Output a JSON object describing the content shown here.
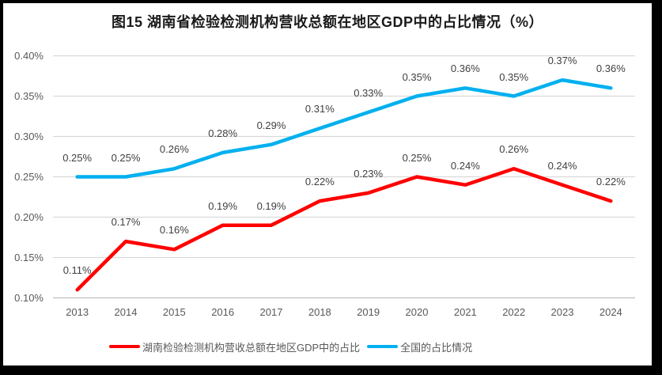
{
  "chart_data": {
    "type": "line",
    "title": "图15 湖南省检验检测机构营收总额在地区GDP中的占比情况（%）",
    "xlabel": "",
    "ylabel": "",
    "categories": [
      "2013",
      "2014",
      "2015",
      "2016",
      "2017",
      "2018",
      "2019",
      "2020",
      "2021",
      "2022",
      "2023",
      "2024"
    ],
    "ylim": [
      0.1,
      0.4
    ],
    "yticks": [
      {
        "v": 0.1,
        "label": "0.10%"
      },
      {
        "v": 0.15,
        "label": "0.15%"
      },
      {
        "v": 0.2,
        "label": "0.20%"
      },
      {
        "v": 0.25,
        "label": "0.25%"
      },
      {
        "v": 0.3,
        "label": "0.30%"
      },
      {
        "v": 0.35,
        "label": "0.35%"
      },
      {
        "v": 0.4,
        "label": "0.40%"
      }
    ],
    "grid": true,
    "legend_position": "bottom",
    "gridline_color": "#D9D9D9",
    "axis_line_color": "#BFBFBF",
    "series": [
      {
        "name": "湖南检验检测机构营收总额在地区GDP中的占比",
        "color": "#FF0000",
        "values": [
          0.11,
          0.17,
          0.16,
          0.19,
          0.19,
          0.22,
          0.23,
          0.25,
          0.24,
          0.26,
          0.24,
          0.22
        ],
        "labels": [
          "0.11%",
          "0.17%",
          "0.16%",
          "0.19%",
          "0.19%",
          "0.22%",
          "0.23%",
          "0.25%",
          "0.24%",
          "0.26%",
          "0.24%",
          "0.22%"
        ]
      },
      {
        "name": "全国的占比情况",
        "color": "#00B0F0",
        "values": [
          0.25,
          0.25,
          0.26,
          0.28,
          0.29,
          0.31,
          0.33,
          0.35,
          0.36,
          0.35,
          0.37,
          0.36
        ],
        "labels": [
          "0.25%",
          "0.25%",
          "0.26%",
          "0.28%",
          "0.29%",
          "0.31%",
          "0.33%",
          "0.35%",
          "0.36%",
          "0.35%",
          "0.37%",
          "0.36%"
        ]
      }
    ]
  }
}
